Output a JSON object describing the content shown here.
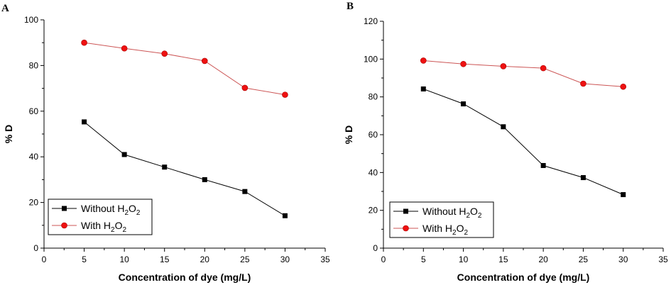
{
  "chart_data": [
    {
      "panel_label": "A",
      "type": "line",
      "xlabel": "Concentration of dye (mg/L)",
      "ylabel": "% D",
      "xlim": [
        0,
        35
      ],
      "ylim": [
        0,
        100
      ],
      "xticks": [
        0,
        5,
        10,
        15,
        20,
        25,
        30,
        35
      ],
      "yticks": [
        0,
        20,
        40,
        60,
        80,
        100
      ],
      "x": [
        5,
        10,
        15,
        20,
        25,
        30
      ],
      "series": [
        {
          "name": "Without H2O2",
          "legend_main": "Without H",
          "legend_sub1": "2",
          "legend_mid": "O",
          "legend_sub2": "2",
          "marker": "square",
          "marker_color": "#000000",
          "line_color": "#000000",
          "values": [
            55.3,
            41.0,
            35.5,
            30.0,
            24.8,
            14.2
          ]
        },
        {
          "name": "With H2O2",
          "legend_main": "With H",
          "legend_sub1": "2",
          "legend_mid": "O",
          "legend_sub2": "2",
          "marker": "circle",
          "marker_color": "#ee1111",
          "line_color": "#cc5555",
          "values": [
            90.0,
            87.5,
            85.2,
            82.0,
            70.2,
            67.2
          ]
        }
      ],
      "legend_position": "bottom-left"
    },
    {
      "panel_label": "B",
      "type": "line",
      "xlabel": "Concentration of dye (mg/L)",
      "ylabel": "% D",
      "xlim": [
        0,
        35
      ],
      "ylim": [
        0,
        120
      ],
      "xticks": [
        0,
        5,
        10,
        15,
        20,
        25,
        30,
        35
      ],
      "yticks": [
        0,
        20,
        40,
        60,
        80,
        100,
        120
      ],
      "x": [
        5,
        10,
        15,
        20,
        25,
        30
      ],
      "series": [
        {
          "name": "Without H2O2",
          "legend_main": "Without H",
          "legend_sub1": "2",
          "legend_mid": "O",
          "legend_sub2": "2",
          "marker": "square",
          "marker_color": "#000000",
          "line_color": "#000000",
          "values": [
            84.2,
            76.3,
            64.2,
            43.7,
            37.3,
            28.3
          ]
        },
        {
          "name": "With H2O2",
          "legend_main": "With H",
          "legend_sub1": "2",
          "legend_mid": "O",
          "legend_sub2": "2",
          "marker": "circle",
          "marker_color": "#ee1111",
          "line_color": "#cc5555",
          "values": [
            99.2,
            97.4,
            96.2,
            95.2,
            87.0,
            85.4
          ]
        }
      ],
      "legend_position": "bottom-left"
    }
  ]
}
